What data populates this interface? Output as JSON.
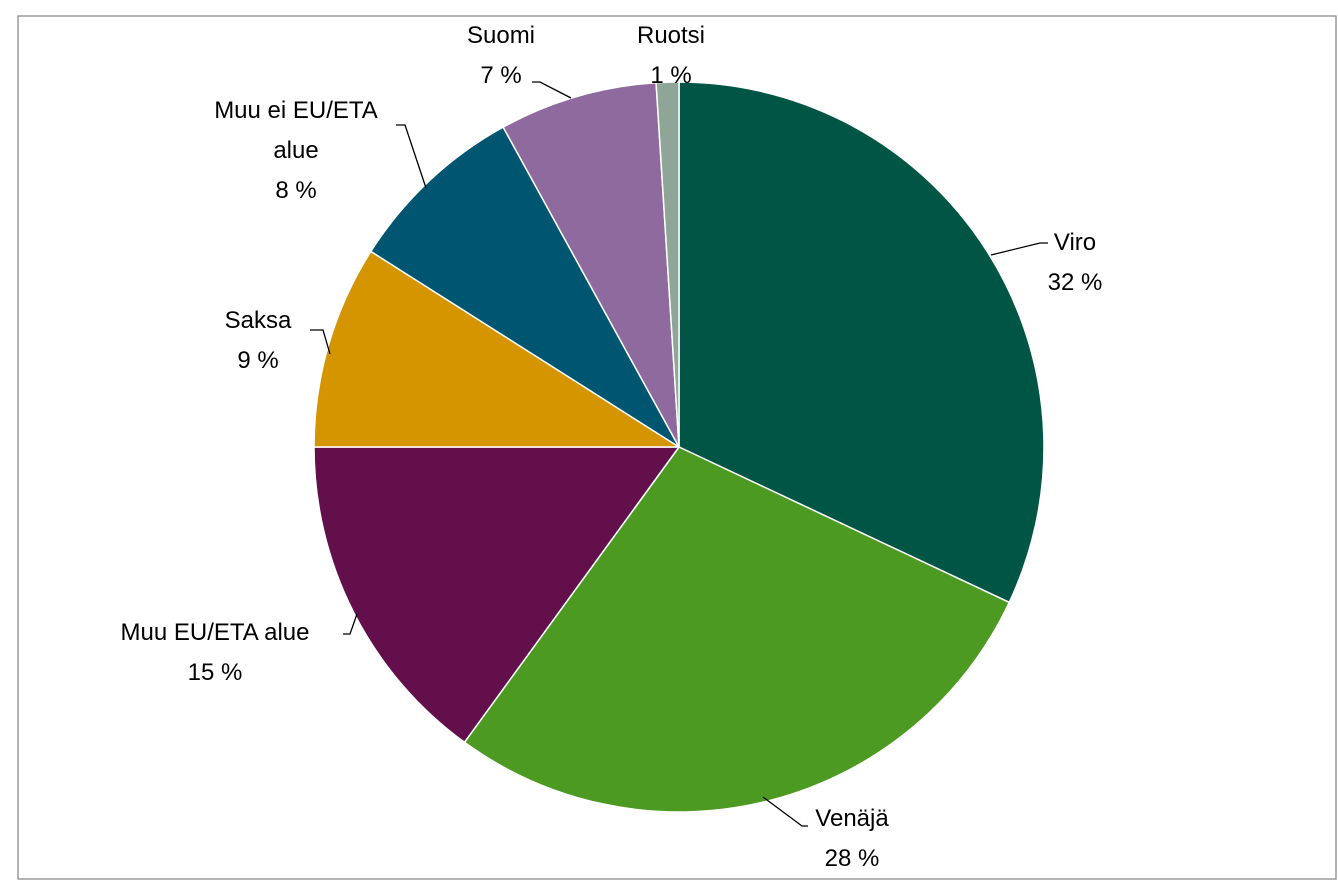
{
  "chart_data": {
    "type": "pie",
    "title": "",
    "slices": [
      {
        "label": "Viro",
        "value": 32,
        "value_label": "32 %",
        "color": "#005544"
      },
      {
        "label": "Venäjä",
        "value": 28,
        "value_label": "28 %",
        "color": "#4c9a22"
      },
      {
        "label": "Muu EU/ETA alue",
        "value": 15,
        "value_label": "15 %",
        "color": "#620f4c"
      },
      {
        "label": "Saksa",
        "value": 9,
        "value_label": "9 %",
        "color": "#d49500"
      },
      {
        "label": "Muu ei EU/ETA alue",
        "value": 8,
        "value_label": "8 %",
        "color": "#005670"
      },
      {
        "label": "Suomi",
        "value": 7,
        "value_label": "7 %",
        "color": "#8e6a9f"
      },
      {
        "label": "Ruotsi",
        "value": 1,
        "value_label": "1 %",
        "color": "#8fa598"
      }
    ],
    "legend": "none",
    "frame_color": "#8c8c8c"
  }
}
